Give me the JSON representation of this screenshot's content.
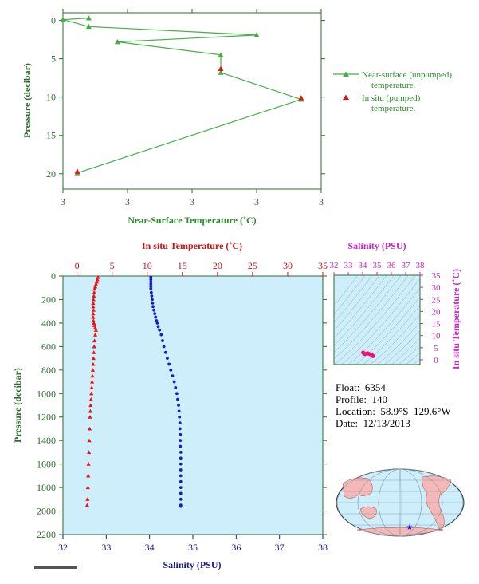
{
  "float_info": {
    "float": "Float:  6354",
    "profile": "Profile:  140",
    "location": "Location:  58.9°S  129.6°W",
    "date": "Date:  12/13/2013"
  },
  "colors": {
    "near_surface": "#44b044",
    "in_situ": "#ee1111",
    "temperature_axis": "#cc1111",
    "salinity": "#1a1acc",
    "salinity_axis": "#1a1a99",
    "ts_axis": "#cc22cc",
    "plot_bg": "#cdeefa",
    "axis_green": "#2d6b2d"
  },
  "chart_data": [
    {
      "id": "near-surface",
      "type": "line",
      "xlabel": "Near-Surface Temperature (˚C)",
      "ylabel": "Pressure (decibar)",
      "xlim": [
        2.976,
        2.985
      ],
      "ylim": [
        22,
        -1
      ],
      "x_tick_labels": [
        "3",
        "3",
        "3",
        "3",
        "3"
      ],
      "x_ticks": [
        2.976,
        2.97825,
        2.9805,
        2.98275,
        2.985
      ],
      "y_ticks": [
        0,
        5,
        10,
        15,
        20
      ],
      "series": [
        {
          "name": "Near-surface (unpumped) temperature.",
          "marker": "triangle",
          "x": [
            2.9769,
            2.976,
            2.9769,
            2.98275,
            2.9779,
            2.9815,
            2.9815,
            2.9843,
            2.9765
          ],
          "y": [
            -0.3,
            -0.1,
            0.8,
            1.9,
            2.8,
            4.5,
            6.8,
            10.3,
            19.9
          ]
        },
        {
          "name": "In situ (pumped) temperature.",
          "marker": "triangle",
          "x": [
            2.9815,
            2.9843,
            2.9765
          ],
          "y": [
            6.3,
            10.1,
            19.7
          ]
        }
      ]
    },
    {
      "id": "profile",
      "type": "scatter",
      "xlabel": "Salinity (PSU)",
      "x2label": "In situ Temperature (˚C)",
      "ylabel": "Pressure (decibar)",
      "xlim": [
        32,
        38
      ],
      "x2lim": [
        -2,
        35
      ],
      "ylim": [
        2200,
        0
      ],
      "x_ticks": [
        32,
        33,
        34,
        35,
        36,
        37,
        38
      ],
      "x2_ticks": [
        0,
        5,
        10,
        15,
        20,
        25,
        30,
        35
      ],
      "y_ticks": [
        0,
        200,
        400,
        600,
        800,
        1000,
        1200,
        1400,
        1600,
        1800,
        2000,
        2200
      ],
      "series": [
        {
          "name": "In situ Temperature",
          "marker": "triangle",
          "x": [
            3.0,
            2.9,
            2.8,
            2.7,
            2.6,
            2.5,
            2.45,
            2.4,
            2.35,
            2.3,
            2.3,
            2.35,
            2.3,
            2.3,
            2.35,
            2.4,
            2.5,
            2.6,
            2.7,
            2.6,
            2.5,
            2.45,
            2.4,
            2.35,
            2.3,
            2.25,
            2.2,
            2.15,
            2.1,
            2.05,
            2.0,
            1.95,
            1.9,
            1.85,
            1.8,
            1.75,
            1.7,
            1.65,
            1.6,
            1.55,
            1.5,
            1.45
          ],
          "y": [
            10,
            30,
            50,
            70,
            90,
            110,
            140,
            170,
            200,
            230,
            260,
            290,
            320,
            350,
            380,
            400,
            420,
            440,
            460,
            500,
            550,
            600,
            650,
            700,
            750,
            800,
            850,
            900,
            950,
            1000,
            1050,
            1100,
            1150,
            1200,
            1300,
            1400,
            1500,
            1600,
            1700,
            1800,
            1900,
            1950
          ]
        },
        {
          "name": "Salinity",
          "marker": "dot",
          "x": [
            34.03,
            34.03,
            34.03,
            34.03,
            34.03,
            34.03,
            34.04,
            34.05,
            34.06,
            34.07,
            34.08,
            34.1,
            34.12,
            34.14,
            34.16,
            34.18,
            34.2,
            34.23,
            34.27,
            34.3,
            34.33,
            34.37,
            34.41,
            34.45,
            34.49,
            34.53,
            34.57,
            34.6,
            34.63,
            34.65,
            34.67,
            34.68,
            34.69,
            34.7,
            34.7,
            34.71,
            34.71,
            34.71,
            34.72,
            34.72,
            34.72,
            34.72,
            34.72,
            34.72,
            34.72,
            34.72,
            34.72,
            34.72,
            34.72
          ],
          "y": [
            10,
            30,
            50,
            70,
            90,
            110,
            140,
            170,
            200,
            230,
            260,
            290,
            320,
            350,
            380,
            400,
            430,
            460,
            500,
            550,
            600,
            650,
            700,
            750,
            800,
            850,
            900,
            950,
            1000,
            1050,
            1100,
            1150,
            1200,
            1250,
            1300,
            1350,
            1400,
            1450,
            1500,
            1550,
            1600,
            1650,
            1700,
            1750,
            1800,
            1850,
            1900,
            1950,
            1960
          ]
        }
      ]
    },
    {
      "id": "ts-diagram",
      "type": "scatter",
      "xlabel": "Salinity (PSU)",
      "ylabel": "In situ Temperature (˚C)",
      "xlim": [
        32,
        38
      ],
      "ylim": [
        -2,
        35
      ],
      "x_ticks": [
        32,
        33,
        34,
        35,
        36,
        37,
        38
      ],
      "y_ticks": [
        0,
        5,
        10,
        15,
        20,
        25,
        30,
        35
      ],
      "series": [
        {
          "name": "T-S",
          "marker": "dot",
          "x": [
            34.03,
            34.08,
            34.15,
            34.25,
            34.35,
            34.45,
            34.55,
            34.62,
            34.68,
            34.72,
            34.72
          ],
          "y": [
            3.0,
            2.6,
            2.3,
            2.5,
            2.7,
            2.4,
            2.2,
            2.0,
            1.8,
            1.6,
            1.45
          ]
        }
      ]
    }
  ]
}
